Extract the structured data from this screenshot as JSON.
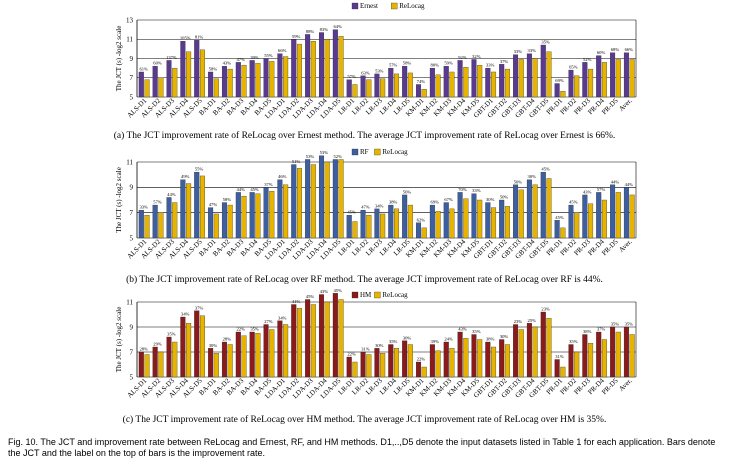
{
  "chart_data": [
    {
      "type": "bar",
      "ylabel": "The JCT (s) -log2 scale",
      "ylim": [
        5,
        13
      ],
      "yticks": [
        5,
        7,
        9,
        11,
        13
      ],
      "legend_placement": "top-center",
      "colors": [
        "#5a3a90",
        "#e6b400"
      ],
      "categories": [
        "ALS-D1",
        "ALS-D2",
        "ALS-D3",
        "ALS-D4",
        "ALS-D5",
        "BA-D1",
        "BA-D2",
        "BA-D3",
        "BA-D4",
        "BA-D5",
        "LDA-D1",
        "LDA-D2",
        "LDA-D3",
        "LDA-D4",
        "LDA-D5",
        "LR-D1",
        "LR-D2",
        "LR-D3",
        "LR-D4",
        "LR-D5",
        "KM-D1",
        "KM-D2",
        "KM-D3",
        "KM-D4",
        "KM-D5",
        "GBT-D1",
        "GBT-D2",
        "GBT-D3",
        "GBT-D4",
        "GBT-D5",
        "PR-D1",
        "PR-D2",
        "PR-D3",
        "PR-D4",
        "PR-D5",
        "Aver."
      ],
      "series": [
        {
          "name": "Ernest",
          "values": [
            7.6,
            8.2,
            8.8,
            10.8,
            10.9,
            7.6,
            8.2,
            8.6,
            8.8,
            9.0,
            9.5,
            11.0,
            11.5,
            11.7,
            12.0,
            6.8,
            7.2,
            7.4,
            8.0,
            8.2,
            6.3,
            8.0,
            8.2,
            8.8,
            8.9,
            8.0,
            8.4,
            9.4,
            9.5,
            10.4,
            6.4,
            7.8,
            8.6,
            9.3,
            9.6,
            9.6
          ]
        },
        {
          "name": "ReLocag",
          "values": [
            6.8,
            7.0,
            8.0,
            9.7,
            9.9,
            6.9,
            7.9,
            8.3,
            8.5,
            8.7,
            9.2,
            10.5,
            10.8,
            11.0,
            11.3,
            6.3,
            6.8,
            6.9,
            7.4,
            7.5,
            5.8,
            7.3,
            7.6,
            8.1,
            8.3,
            7.6,
            7.9,
            8.9,
            9.0,
            9.7,
            5.6,
            7.2,
            7.9,
            8.6,
            8.9,
            8.9
          ]
        }
      ],
      "bar_labels": [
        "61%",
        "60%",
        "137%",
        "105%",
        "81%",
        "58%",
        "43%",
        "47%",
        "39%",
        "55%",
        "66%",
        "59%",
        "88%",
        "83%",
        "64%",
        "57%",
        "63%",
        "53%",
        "57%",
        "58%",
        "74%",
        "80%",
        "59%",
        "92%",
        "32%",
        "33%",
        "37%",
        "33%",
        "33%",
        "35%",
        "69%",
        "65%",
        "52%",
        "60%",
        "68%",
        "66%"
      ],
      "caption": "(a) The JCT improvement rate of ReLocag over Ernest method. The average JCT improvement rate of ReLocag over Ernest is 66%."
    },
    {
      "type": "bar",
      "ylabel": "The JCT (s) -log2 scale",
      "ylim": [
        5,
        11
      ],
      "yticks": [
        5,
        7,
        9,
        11
      ],
      "legend_placement": "top-center",
      "colors": [
        "#3d5fa0",
        "#e6b400"
      ],
      "categories": [
        "ALS-D1",
        "ALS-D2",
        "ALS-D3",
        "ALS-D4",
        "ALS-D5",
        "BA-D1",
        "BA-D2",
        "BA-D3",
        "BA-D4",
        "BA-D5",
        "LDA-D1",
        "LDA-D2",
        "LDA-D3",
        "LDA-D4",
        "LDA-D5",
        "LR-D1",
        "LR-D2",
        "LR-D3",
        "LR-D4",
        "LR-D5",
        "KM-D1",
        "KM-D2",
        "KM-D3",
        "KM-D4",
        "KM-D5",
        "GBT-D1",
        "GBT-D2",
        "GBT-D3",
        "GBT-D4",
        "GBT-D5",
        "PR-D1",
        "PR-D2",
        "PR-D3",
        "PR-D4",
        "PR-D5",
        "Aver."
      ],
      "series": [
        {
          "name": "RF",
          "values": [
            7.2,
            7.6,
            8.2,
            9.6,
            10.2,
            7.4,
            7.8,
            8.6,
            8.6,
            9.0,
            9.6,
            10.8,
            11.2,
            11.5,
            11.2,
            6.8,
            7.2,
            7.3,
            7.6,
            8.4,
            6.2,
            7.6,
            7.8,
            8.6,
            8.5,
            7.8,
            8.0,
            9.2,
            9.6,
            10.2,
            6.4,
            7.6,
            8.4,
            8.6,
            9.2,
            9.0
          ]
        },
        {
          "name": "ReLocag",
          "values": [
            6.8,
            7.0,
            7.8,
            9.3,
            9.9,
            6.9,
            7.6,
            8.3,
            8.5,
            8.7,
            9.2,
            10.5,
            10.8,
            11.0,
            11.2,
            6.3,
            6.8,
            6.9,
            7.3,
            7.6,
            5.8,
            7.1,
            7.3,
            8.1,
            8.0,
            7.4,
            7.5,
            8.8,
            9.2,
            9.7,
            5.8,
            7.0,
            7.7,
            8.0,
            8.6,
            8.4
          ]
        }
      ],
      "bar_labels": [
        "33%",
        "57%",
        "44%",
        "49%",
        "55%",
        "47%",
        "58%",
        "44%",
        "45%",
        "37%",
        "46%",
        "51%",
        "53%",
        "53%",
        "52%",
        "45%",
        "47%",
        "34%",
        "38%",
        "56%",
        "62%",
        "69%",
        "67%",
        "70%",
        "33%",
        "30%",
        "50%",
        "50%",
        "30%",
        "45%",
        "45%",
        "45%",
        "43%",
        "57%",
        "44%",
        "44%"
      ],
      "caption": "(b) The JCT improvement rate of ReLocag over RF method. The average JCT improvement rate of ReLocag over RF is 44%."
    },
    {
      "type": "bar",
      "ylabel": "The JCT (s) -log2 scale",
      "ylim": [
        5,
        11
      ],
      "yticks": [
        5,
        7,
        9,
        11
      ],
      "legend_placement": "top-center",
      "colors": [
        "#8b1a1a",
        "#e6b400"
      ],
      "categories": [
        "ALS-D1",
        "ALS-D2",
        "ALS-D3",
        "ALS-D4",
        "ALS-D5",
        "BA-D1",
        "BA-D2",
        "BA-D3",
        "BA-D4",
        "BA-D5",
        "LDA-D1",
        "LDA-D2",
        "LDA-D3",
        "LDA-D4",
        "LDA-D5",
        "LR-D1",
        "LR-D2",
        "LR-D3",
        "LR-D4",
        "LR-D5",
        "KM-D1",
        "KM-D2",
        "KM-D3",
        "KM-D4",
        "KM-D5",
        "GBT-D1",
        "GBT-D2",
        "GBT-D3",
        "GBT-D4",
        "GBT-D5",
        "PR-D1",
        "PR-D2",
        "PR-D3",
        "PR-D4",
        "PR-D5",
        "Aver."
      ],
      "series": [
        {
          "name": "HM",
          "values": [
            7.0,
            7.4,
            8.2,
            9.8,
            10.3,
            7.3,
            7.8,
            8.6,
            8.6,
            9.2,
            9.5,
            10.8,
            11.2,
            11.6,
            11.7,
            6.6,
            7.0,
            7.3,
            7.6,
            7.9,
            6.2,
            7.6,
            7.8,
            8.6,
            8.4,
            7.8,
            8.0,
            9.2,
            9.3,
            10.2,
            6.4,
            7.6,
            8.4,
            8.6,
            9.0,
            9.0
          ]
        },
        {
          "name": "ReLocag",
          "values": [
            6.8,
            7.0,
            7.8,
            9.3,
            9.9,
            6.9,
            7.6,
            8.3,
            8.5,
            8.8,
            9.2,
            10.5,
            10.8,
            11.0,
            11.2,
            6.2,
            6.8,
            6.9,
            7.3,
            7.6,
            5.8,
            7.1,
            7.3,
            8.1,
            8.0,
            7.4,
            7.6,
            8.8,
            9.0,
            9.7,
            5.8,
            7.0,
            7.7,
            8.0,
            8.6,
            8.4
          ]
        }
      ],
      "bar_labels": [
        "28%",
        "29%",
        "35%",
        "34%",
        "37%",
        "30%",
        "28%",
        "22%",
        "35%",
        "27%",
        "34%",
        "41%",
        "45%",
        "43%",
        "45%",
        "22%",
        "31%",
        "30%",
        "35%",
        "30%",
        "22%",
        "39%",
        "24%",
        "43%",
        "35%",
        "38%",
        "30%",
        "23%",
        "25%",
        "23%",
        "31%",
        "35%",
        "38%",
        "37%",
        "35%",
        "35%"
      ],
      "caption": "(c) The JCT improvement rate of ReLocag over HM method. The average JCT improvement rate of ReLocag over HM is 35%."
    }
  ],
  "figure_caption": "Fig. 10. The JCT and improvement rate between ReLocag and Ernest, RF, and HM methods. D1,..,D5 denote the input datasets listed in Table 1 for each application. Bars denote the JCT and the label on the top of bars is the improvement rate."
}
